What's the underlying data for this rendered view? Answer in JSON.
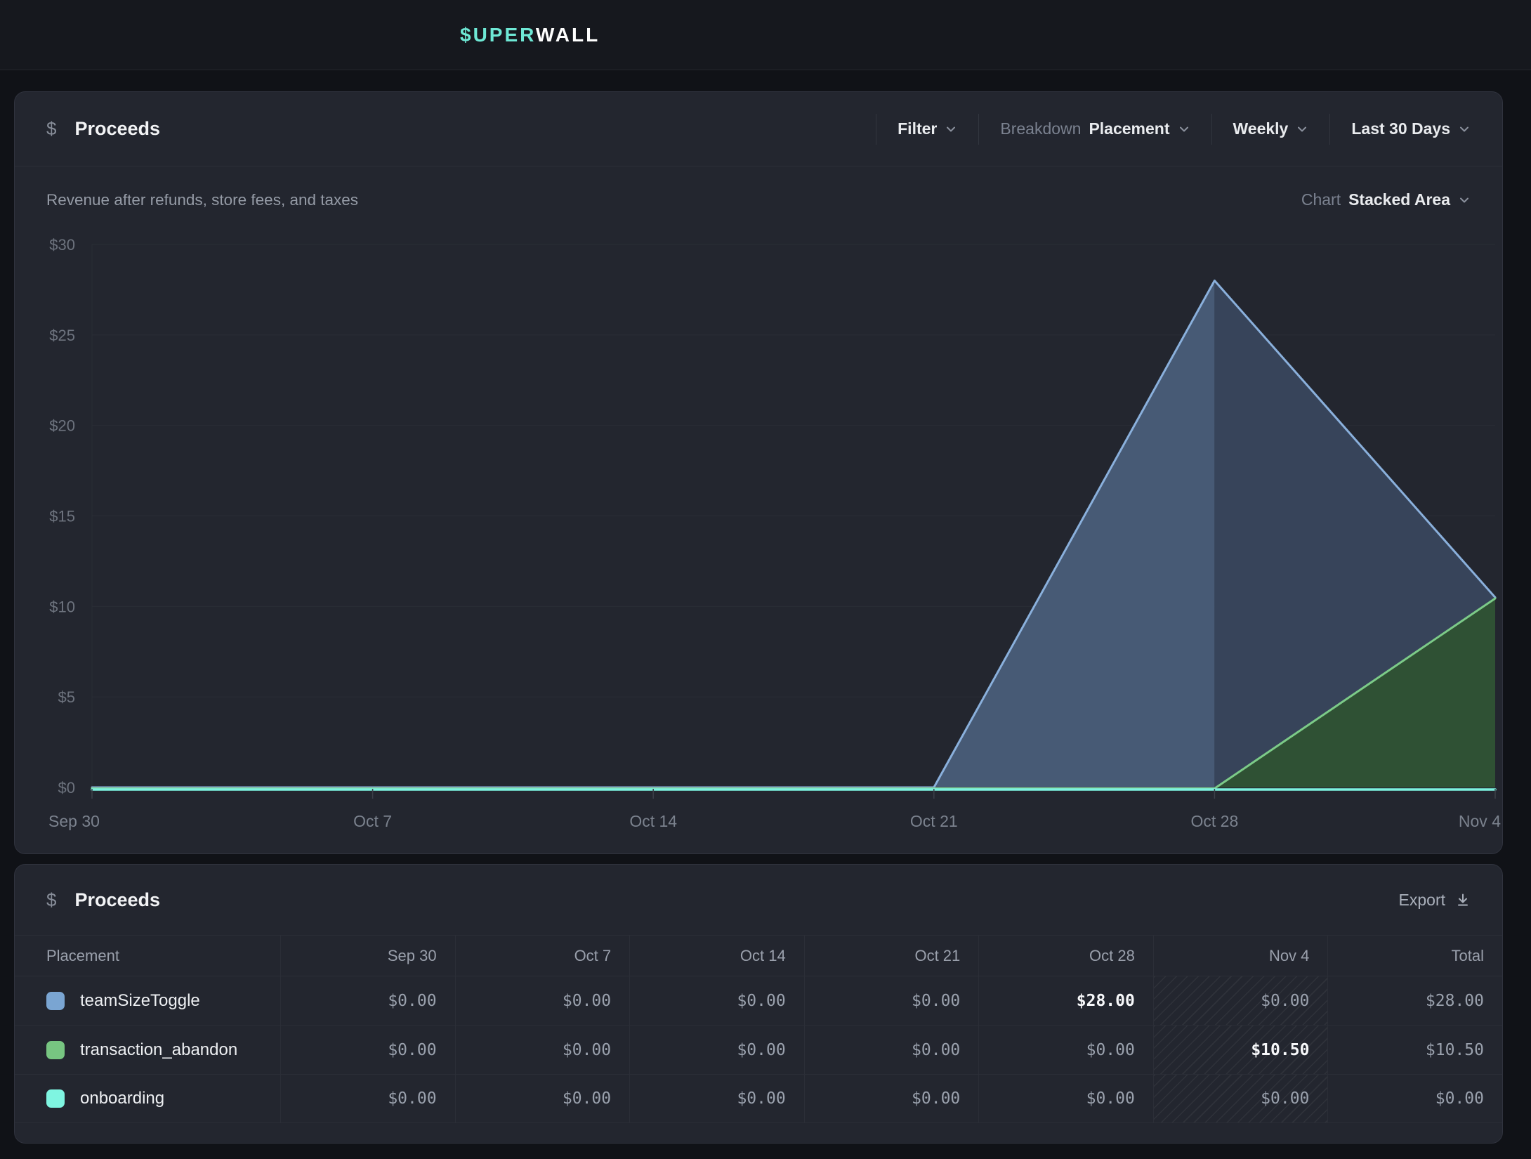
{
  "topbar": {
    "logo_primary": "$UPER",
    "logo_secondary": "WALL"
  },
  "chart_card": {
    "icon_glyph": "$",
    "title": "Proceeds",
    "subtitle": "Revenue after refunds, store fees, and taxes",
    "controls": {
      "filter_label": "Filter",
      "breakdown_label": "Breakdown",
      "breakdown_value": "Placement",
      "interval_value": "Weekly",
      "range_value": "Last 30 Days"
    },
    "chart_type_label": "Chart",
    "chart_type_value": "Stacked Area"
  },
  "chart_data": {
    "type": "area",
    "stacked": true,
    "title": "Proceeds",
    "categories": [
      "Sep 30",
      "Oct 7",
      "Oct 14",
      "Oct 21",
      "Oct 28",
      "Nov 4"
    ],
    "series": [
      {
        "name": "onboarding",
        "color": "#7CF2DF",
        "fill": "#1F4A44",
        "fill_incomplete": "#1F4A44",
        "values": [
          0,
          0,
          0,
          0,
          0,
          0
        ]
      },
      {
        "name": "transaction_abandon",
        "color": "#7CCB88",
        "fill": "#355C3C",
        "fill_incomplete": "#2F5134",
        "values": [
          0,
          0,
          0,
          0,
          0,
          10.5
        ]
      },
      {
        "name": "teamSizeToggle",
        "color": "#8AB0DC",
        "fill": "#475A75",
        "fill_incomplete": "#37445A",
        "values": [
          0,
          0,
          0,
          0,
          28,
          0
        ]
      }
    ],
    "ytick_labels": [
      "$0",
      "$5",
      "$10",
      "$15",
      "$20",
      "$25",
      "$30"
    ],
    "ylim": [
      0,
      30
    ],
    "ytick_step": 5,
    "grid": true,
    "legend_position": "none",
    "incomplete_from_index": 4
  },
  "table_card": {
    "icon_glyph": "$",
    "title": "Proceeds",
    "export_label": "Export",
    "columns": [
      "Placement",
      "Sep 30",
      "Oct 7",
      "Oct 14",
      "Oct 21",
      "Oct 28",
      "Nov 4",
      "Total"
    ],
    "hatched_column": "Nov 4",
    "rows": [
      {
        "label": "teamSizeToggle",
        "swatch": "#7AA5D2",
        "values": [
          "$0.00",
          "$0.00",
          "$0.00",
          "$0.00",
          "$28.00",
          "$0.00",
          "$28.00"
        ],
        "emphasis": [
          4
        ]
      },
      {
        "label": "transaction_abandon",
        "swatch": "#77C581",
        "values": [
          "$0.00",
          "$0.00",
          "$0.00",
          "$0.00",
          "$0.00",
          "$10.50",
          "$10.50"
        ],
        "emphasis": [
          5
        ]
      },
      {
        "label": "onboarding",
        "swatch": "#7FF5E1",
        "values": [
          "$0.00",
          "$0.00",
          "$0.00",
          "$0.00",
          "$0.00",
          "$0.00",
          "$0.00"
        ],
        "emphasis": []
      }
    ]
  },
  "colors": {
    "page_bg": "#101217",
    "topbar_bg": "#16181e",
    "card_bg": "#23262f",
    "grid_line": "#2a2d36",
    "axis_text": "#6d737e",
    "accent_mint": "#6ee8d5"
  }
}
